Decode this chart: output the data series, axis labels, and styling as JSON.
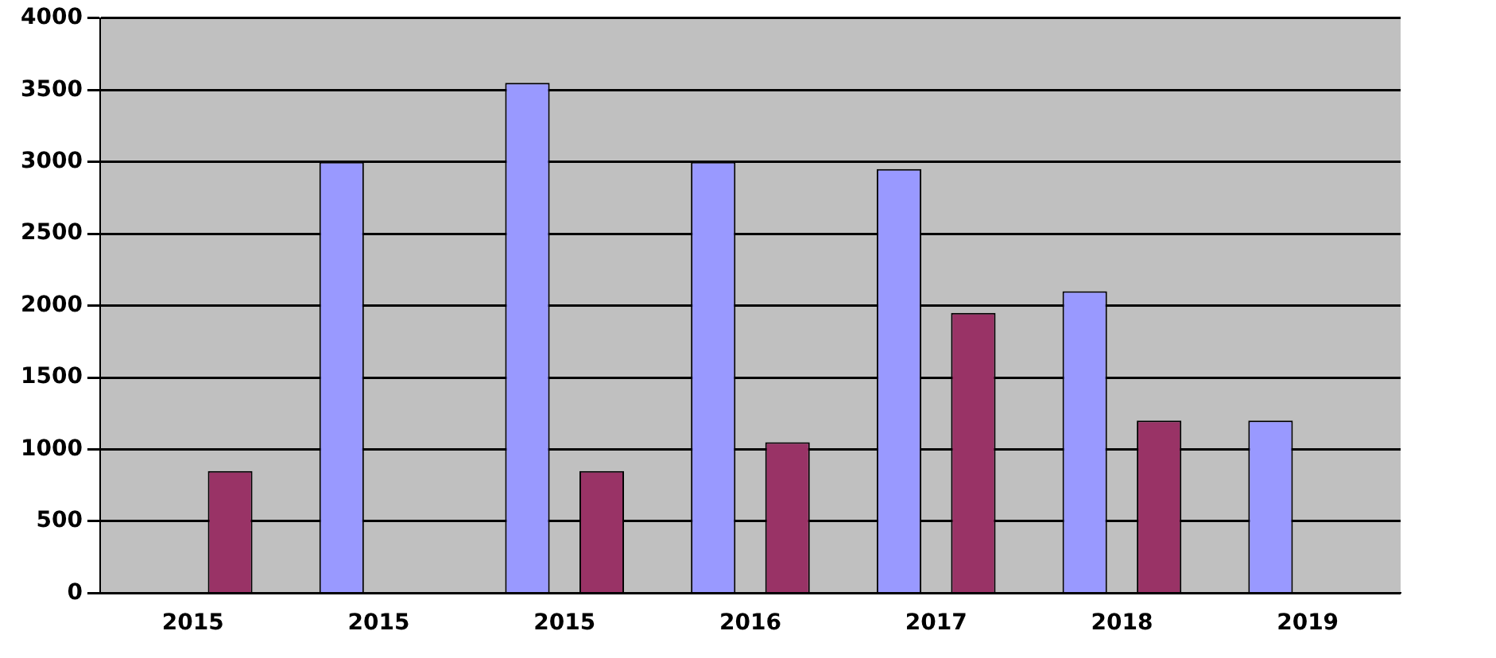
{
  "chart_data": {
    "type": "bar",
    "categories": [
      "2015",
      "2015",
      "2015",
      "2016",
      "2017",
      "2018",
      "2019"
    ],
    "series": [
      {
        "color": "#9999ff",
        "values": [
          0,
          3000,
          3550,
          3000,
          2950,
          2100,
          1200
        ]
      },
      {
        "color": "#993366",
        "values": [
          850,
          0,
          850,
          1050,
          1950,
          1200,
          0
        ]
      }
    ],
    "ylim": [
      0,
      4000
    ],
    "yticks": [
      0,
      500,
      1000,
      1500,
      2000,
      2500,
      3000,
      3500,
      4000
    ],
    "grid": "y",
    "legend": false
  }
}
